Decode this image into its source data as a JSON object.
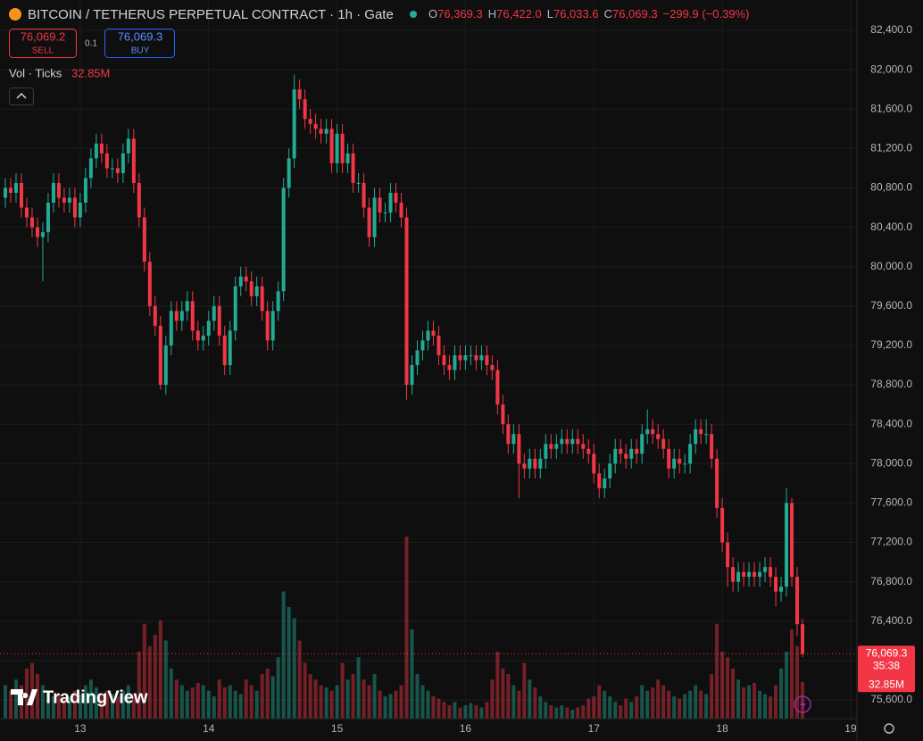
{
  "header": {
    "title": "BITCOIN / TETHERUS PERPETUAL CONTRACT · 1h · Gate",
    "ohlc": [
      {
        "label": "O",
        "value": "76,369.3"
      },
      {
        "label": "H",
        "value": "76,422.0"
      },
      {
        "label": "L",
        "value": "76,033.6"
      },
      {
        "label": "C",
        "value": "76,069.3"
      }
    ],
    "change": "−299.9 (−0.39%)"
  },
  "trade": {
    "sell_price": "76,069.2",
    "sell": "SELL",
    "quantity": "0.1",
    "buy_price": "76,069.3",
    "buy": "BUY"
  },
  "indicator": {
    "name": "Vol · Ticks",
    "value": "32.85M"
  },
  "price_badge": {
    "price": "76,069.3",
    "countdown": "35:38",
    "volume": "32.85M"
  },
  "brand": "TradingView",
  "chart_data": {
    "type": "candlestick",
    "up_color": "#22ab94",
    "down_color": "#f23645",
    "grid": true,
    "xlim": [
      12.375,
      19.049
    ],
    "xticks": [
      13,
      14,
      15,
      16,
      17,
      18,
      19
    ],
    "ylim": [
      75410,
      82708
    ],
    "yticks": [
      {
        "value": 75600,
        "label": "75,600.0"
      },
      {
        "value": 76000,
        "label": "76,000.0"
      },
      {
        "value": 76400,
        "label": "76,400.0"
      },
      {
        "value": 76800,
        "label": "76,800.0"
      },
      {
        "value": 77200,
        "label": "77,200.0"
      },
      {
        "value": 77600,
        "label": "77,600.0"
      },
      {
        "value": 78000,
        "label": "78,000.0"
      },
      {
        "value": 78400,
        "label": "78,400.0"
      },
      {
        "value": 78800,
        "label": "78,800.0"
      },
      {
        "value": 79200,
        "label": "79,200.0"
      },
      {
        "value": 79600,
        "label": "79,600.0"
      },
      {
        "value": 80000,
        "label": "80,000.0"
      },
      {
        "value": 80400,
        "label": "80,400.0"
      },
      {
        "value": 80800,
        "label": "80,800.0"
      },
      {
        "value": 81200,
        "label": "81,200.0"
      },
      {
        "value": 81600,
        "label": "81,600.0"
      },
      {
        "value": 82000,
        "label": "82,000.0"
      },
      {
        "value": 82400,
        "label": "82,400.0"
      }
    ],
    "vlim": [
      0,
      260
    ],
    "x": [
      12.4167,
      12.4583,
      12.5,
      12.5417,
      12.5833,
      12.625,
      12.6667,
      12.7083,
      12.75,
      12.7917,
      12.8333,
      12.875,
      12.9167,
      12.9583,
      13,
      13.0417,
      13.0833,
      13.125,
      13.1667,
      13.2083,
      13.25,
      13.2917,
      13.3333,
      13.375,
      13.4167,
      13.4583,
      13.5,
      13.5417,
      13.5833,
      13.625,
      13.6667,
      13.7083,
      13.75,
      13.7917,
      13.8333,
      13.875,
      13.9167,
      13.9583,
      14,
      14.0417,
      14.0833,
      14.125,
      14.1667,
      14.2083,
      14.25,
      14.2917,
      14.3333,
      14.375,
      14.4167,
      14.4583,
      14.5,
      14.5417,
      14.5833,
      14.625,
      14.6667,
      14.7083,
      14.75,
      14.7917,
      14.8333,
      14.875,
      14.9167,
      14.9583,
      15,
      15.0417,
      15.0833,
      15.125,
      15.1667,
      15.2083,
      15.25,
      15.2917,
      15.3333,
      15.375,
      15.4167,
      15.4583,
      15.5,
      15.5417,
      15.5833,
      15.625,
      15.6667,
      15.7083,
      15.75,
      15.7917,
      15.8333,
      15.875,
      15.9167,
      15.9583,
      16,
      16.0417,
      16.0833,
      16.125,
      16.1667,
      16.2083,
      16.25,
      16.2917,
      16.3333,
      16.375,
      16.4167,
      16.4583,
      16.5,
      16.5417,
      16.5833,
      16.625,
      16.6667,
      16.7083,
      16.75,
      16.7917,
      16.8333,
      16.875,
      16.9167,
      16.9583,
      17,
      17.0417,
      17.0833,
      17.125,
      17.1667,
      17.2083,
      17.25,
      17.2917,
      17.3333,
      17.375,
      17.4167,
      17.4583,
      17.5,
      17.5417,
      17.5833,
      17.625,
      17.6667,
      17.7083,
      17.75,
      17.7917,
      17.8333,
      17.875,
      17.9167,
      17.9583,
      18,
      18.0417,
      18.0833,
      18.125,
      18.1667,
      18.2083,
      18.25,
      18.2917,
      18.3333,
      18.375,
      18.4167,
      18.4583,
      18.5,
      18.5417,
      18.5833,
      18.625
    ],
    "open": [
      80700,
      80800,
      80750,
      80850,
      80600,
      80500,
      80400,
      80300,
      80350,
      80650,
      80850,
      80700,
      80650,
      80700,
      80500,
      80650,
      80900,
      81100,
      81250,
      81150,
      81000,
      81000,
      80950,
      81150,
      81300,
      80850,
      80500,
      80050,
      79600,
      79400,
      78800,
      79200,
      79550,
      79450,
      79550,
      79650,
      79350,
      79250,
      79300,
      79450,
      79600,
      79300,
      79000,
      79350,
      79800,
      79900,
      79850,
      79700,
      79800,
      79550,
      79250,
      79550,
      79750,
      80800,
      81100,
      81800,
      81700,
      81500,
      81450,
      81400,
      81350,
      81400,
      81050,
      81350,
      81050,
      81150,
      80850,
      80850,
      80600,
      80300,
      80700,
      80550,
      80550,
      80750,
      80650,
      80500,
      78800,
      79000,
      79150,
      79250,
      79350,
      79300,
      79100,
      79000,
      78950,
      79100,
      79050,
      79100,
      79100,
      79050,
      79100,
      79000,
      78950,
      78600,
      78400,
      78200,
      78300,
      78000,
      77950,
      78050,
      77950,
      78050,
      78200,
      78150,
      78200,
      78250,
      78200,
      78250,
      78200,
      78150,
      78100,
      77900,
      77750,
      77850,
      78000,
      78150,
      78100,
      78050,
      78150,
      78100,
      78300,
      78350,
      78300,
      78250,
      78150,
      77950,
      78050,
      78000,
      78000,
      78200,
      78350,
      78300,
      78300,
      78050,
      77550,
      77200,
      76950,
      76800,
      76900,
      76850,
      76900,
      76850,
      76900,
      76950,
      76850,
      76700,
      76750,
      77600,
      76850,
      76369.3
    ],
    "high": [
      80900,
      80900,
      80950,
      80950,
      80700,
      80600,
      80500,
      80450,
      80750,
      80950,
      80950,
      80800,
      80800,
      80800,
      80750,
      81000,
      81200,
      81350,
      81350,
      81250,
      81100,
      81100,
      81250,
      81400,
      81400,
      80950,
      80600,
      80150,
      79700,
      79500,
      79300,
      79650,
      79650,
      79650,
      79750,
      79750,
      79450,
      79400,
      79550,
      79700,
      79700,
      79400,
      79450,
      79900,
      80000,
      80000,
      79950,
      79900,
      79900,
      79650,
      79650,
      79850,
      80900,
      81200,
      81950,
      81900,
      81800,
      81600,
      81550,
      81500,
      81500,
      81500,
      81450,
      81450,
      81250,
      81250,
      80950,
      80950,
      80700,
      80800,
      80800,
      80650,
      80850,
      80850,
      80750,
      80600,
      79100,
      79250,
      79350,
      79450,
      79450,
      79400,
      79200,
      79100,
      79200,
      79200,
      79200,
      79200,
      79200,
      79200,
      79200,
      79100,
      79050,
      78700,
      78500,
      78400,
      78400,
      78100,
      78150,
      78150,
      78150,
      78300,
      78300,
      78300,
      78350,
      78350,
      78350,
      78350,
      78300,
      78250,
      78200,
      78000,
      77950,
      78100,
      78250,
      78250,
      78200,
      78250,
      78250,
      78400,
      78550,
      78450,
      78400,
      78350,
      78250,
      78150,
      78150,
      78100,
      78300,
      78450,
      78450,
      78450,
      78400,
      78150,
      77650,
      77300,
      77050,
      77000,
      77000,
      77000,
      77000,
      77000,
      77050,
      77050,
      76950,
      76850,
      77750,
      77650,
      76950,
      76422
    ],
    "low": [
      80600,
      80650,
      80650,
      80500,
      80400,
      80300,
      80200,
      79850,
      80250,
      80550,
      80600,
      80550,
      80550,
      80400,
      80400,
      80550,
      80800,
      81000,
      81050,
      80900,
      80900,
      80850,
      80850,
      81050,
      80750,
      80400,
      79950,
      79500,
      79300,
      78750,
      78700,
      79100,
      79350,
      79350,
      79450,
      79250,
      79150,
      79150,
      79200,
      79350,
      79200,
      78900,
      78900,
      79250,
      79700,
      79750,
      79600,
      79600,
      79450,
      79150,
      79150,
      79450,
      79650,
      80700,
      81000,
      81600,
      81400,
      81350,
      81300,
      81250,
      81250,
      80950,
      80950,
      80950,
      80950,
      80750,
      80750,
      80500,
      80200,
      80200,
      80450,
      80450,
      80450,
      80550,
      80400,
      78650,
      78700,
      78900,
      79050,
      79150,
      79200,
      79000,
      78900,
      78850,
      78850,
      78950,
      78950,
      79000,
      78950,
      78950,
      78900,
      78850,
      78500,
      78300,
      78100,
      78100,
      77650,
      77850,
      77850,
      77850,
      77850,
      77950,
      78050,
      78050,
      78100,
      78100,
      78100,
      78100,
      78050,
      78000,
      77800,
      77650,
      77650,
      77750,
      77900,
      78000,
      77950,
      77950,
      78000,
      78000,
      78200,
      78200,
      78150,
      78050,
      77850,
      77850,
      77900,
      77900,
      77900,
      78100,
      78200,
      78200,
      77950,
      77450,
      77100,
      76750,
      76700,
      76700,
      76750,
      76750,
      76750,
      76750,
      76800,
      76750,
      76550,
      76600,
      76650,
      76750,
      76250,
      76033.6
    ],
    "close": [
      80800,
      80750,
      80850,
      80600,
      80500,
      80400,
      80300,
      80350,
      80650,
      80850,
      80700,
      80650,
      80700,
      80500,
      80650,
      80900,
      81100,
      81250,
      81150,
      81000,
      81000,
      80950,
      81150,
      81300,
      80850,
      80500,
      80050,
      79600,
      79400,
      78800,
      79200,
      79550,
      79450,
      79550,
      79650,
      79350,
      79250,
      79300,
      79450,
      79600,
      79300,
      79000,
      79350,
      79800,
      79900,
      79850,
      79700,
      79800,
      79550,
      79250,
      79550,
      79750,
      80800,
      81100,
      81800,
      81700,
      81500,
      81450,
      81400,
      81350,
      81400,
      81050,
      81350,
      81050,
      81150,
      80850,
      80850,
      80600,
      80300,
      80700,
      80550,
      80550,
      80750,
      80650,
      80500,
      78800,
      79000,
      79150,
      79250,
      79350,
      79300,
      79100,
      79000,
      78950,
      79100,
      79050,
      79100,
      79100,
      79050,
      79100,
      79000,
      78950,
      78600,
      78400,
      78200,
      78300,
      78000,
      77950,
      78050,
      77950,
      78050,
      78200,
      78150,
      78200,
      78250,
      78200,
      78250,
      78200,
      78150,
      78100,
      77900,
      77750,
      77850,
      78000,
      78150,
      78100,
      78050,
      78150,
      78100,
      78300,
      78350,
      78300,
      78250,
      78150,
      77950,
      78050,
      78000,
      78000,
      78200,
      78350,
      78300,
      78300,
      78050,
      77550,
      77200,
      76950,
      76800,
      76900,
      76850,
      76900,
      76850,
      76900,
      76950,
      76850,
      76700,
      76750,
      77600,
      76850,
      76369.3,
      76069.3
    ],
    "volume": [
      30,
      25,
      35,
      30,
      45,
      50,
      40,
      30,
      25,
      20,
      22,
      18,
      20,
      25,
      22,
      30,
      35,
      28,
      20,
      25,
      22,
      20,
      25,
      30,
      22,
      60,
      85,
      65,
      75,
      88,
      70,
      45,
      35,
      30,
      25,
      28,
      32,
      30,
      25,
      20,
      35,
      28,
      30,
      25,
      22,
      35,
      30,
      25,
      40,
      45,
      38,
      55,
      114,
      100,
      90,
      70,
      50,
      40,
      35,
      30,
      28,
      25,
      30,
      50,
      35,
      40,
      55,
      35,
      30,
      40,
      25,
      20,
      22,
      25,
      30,
      163,
      80,
      40,
      30,
      25,
      20,
      18,
      15,
      12,
      15,
      10,
      12,
      14,
      12,
      10,
      15,
      35,
      60,
      45,
      40,
      30,
      25,
      50,
      35,
      28,
      20,
      15,
      12,
      10,
      12,
      10,
      8,
      10,
      12,
      18,
      20,
      30,
      25,
      20,
      15,
      12,
      18,
      15,
      20,
      30,
      25,
      28,
      35,
      30,
      25,
      20,
      18,
      22,
      25,
      30,
      25,
      22,
      40,
      85,
      60,
      55,
      45,
      35,
      28,
      30,
      32,
      25,
      22,
      20,
      30,
      45,
      60,
      80,
      65,
      32.85
    ]
  }
}
